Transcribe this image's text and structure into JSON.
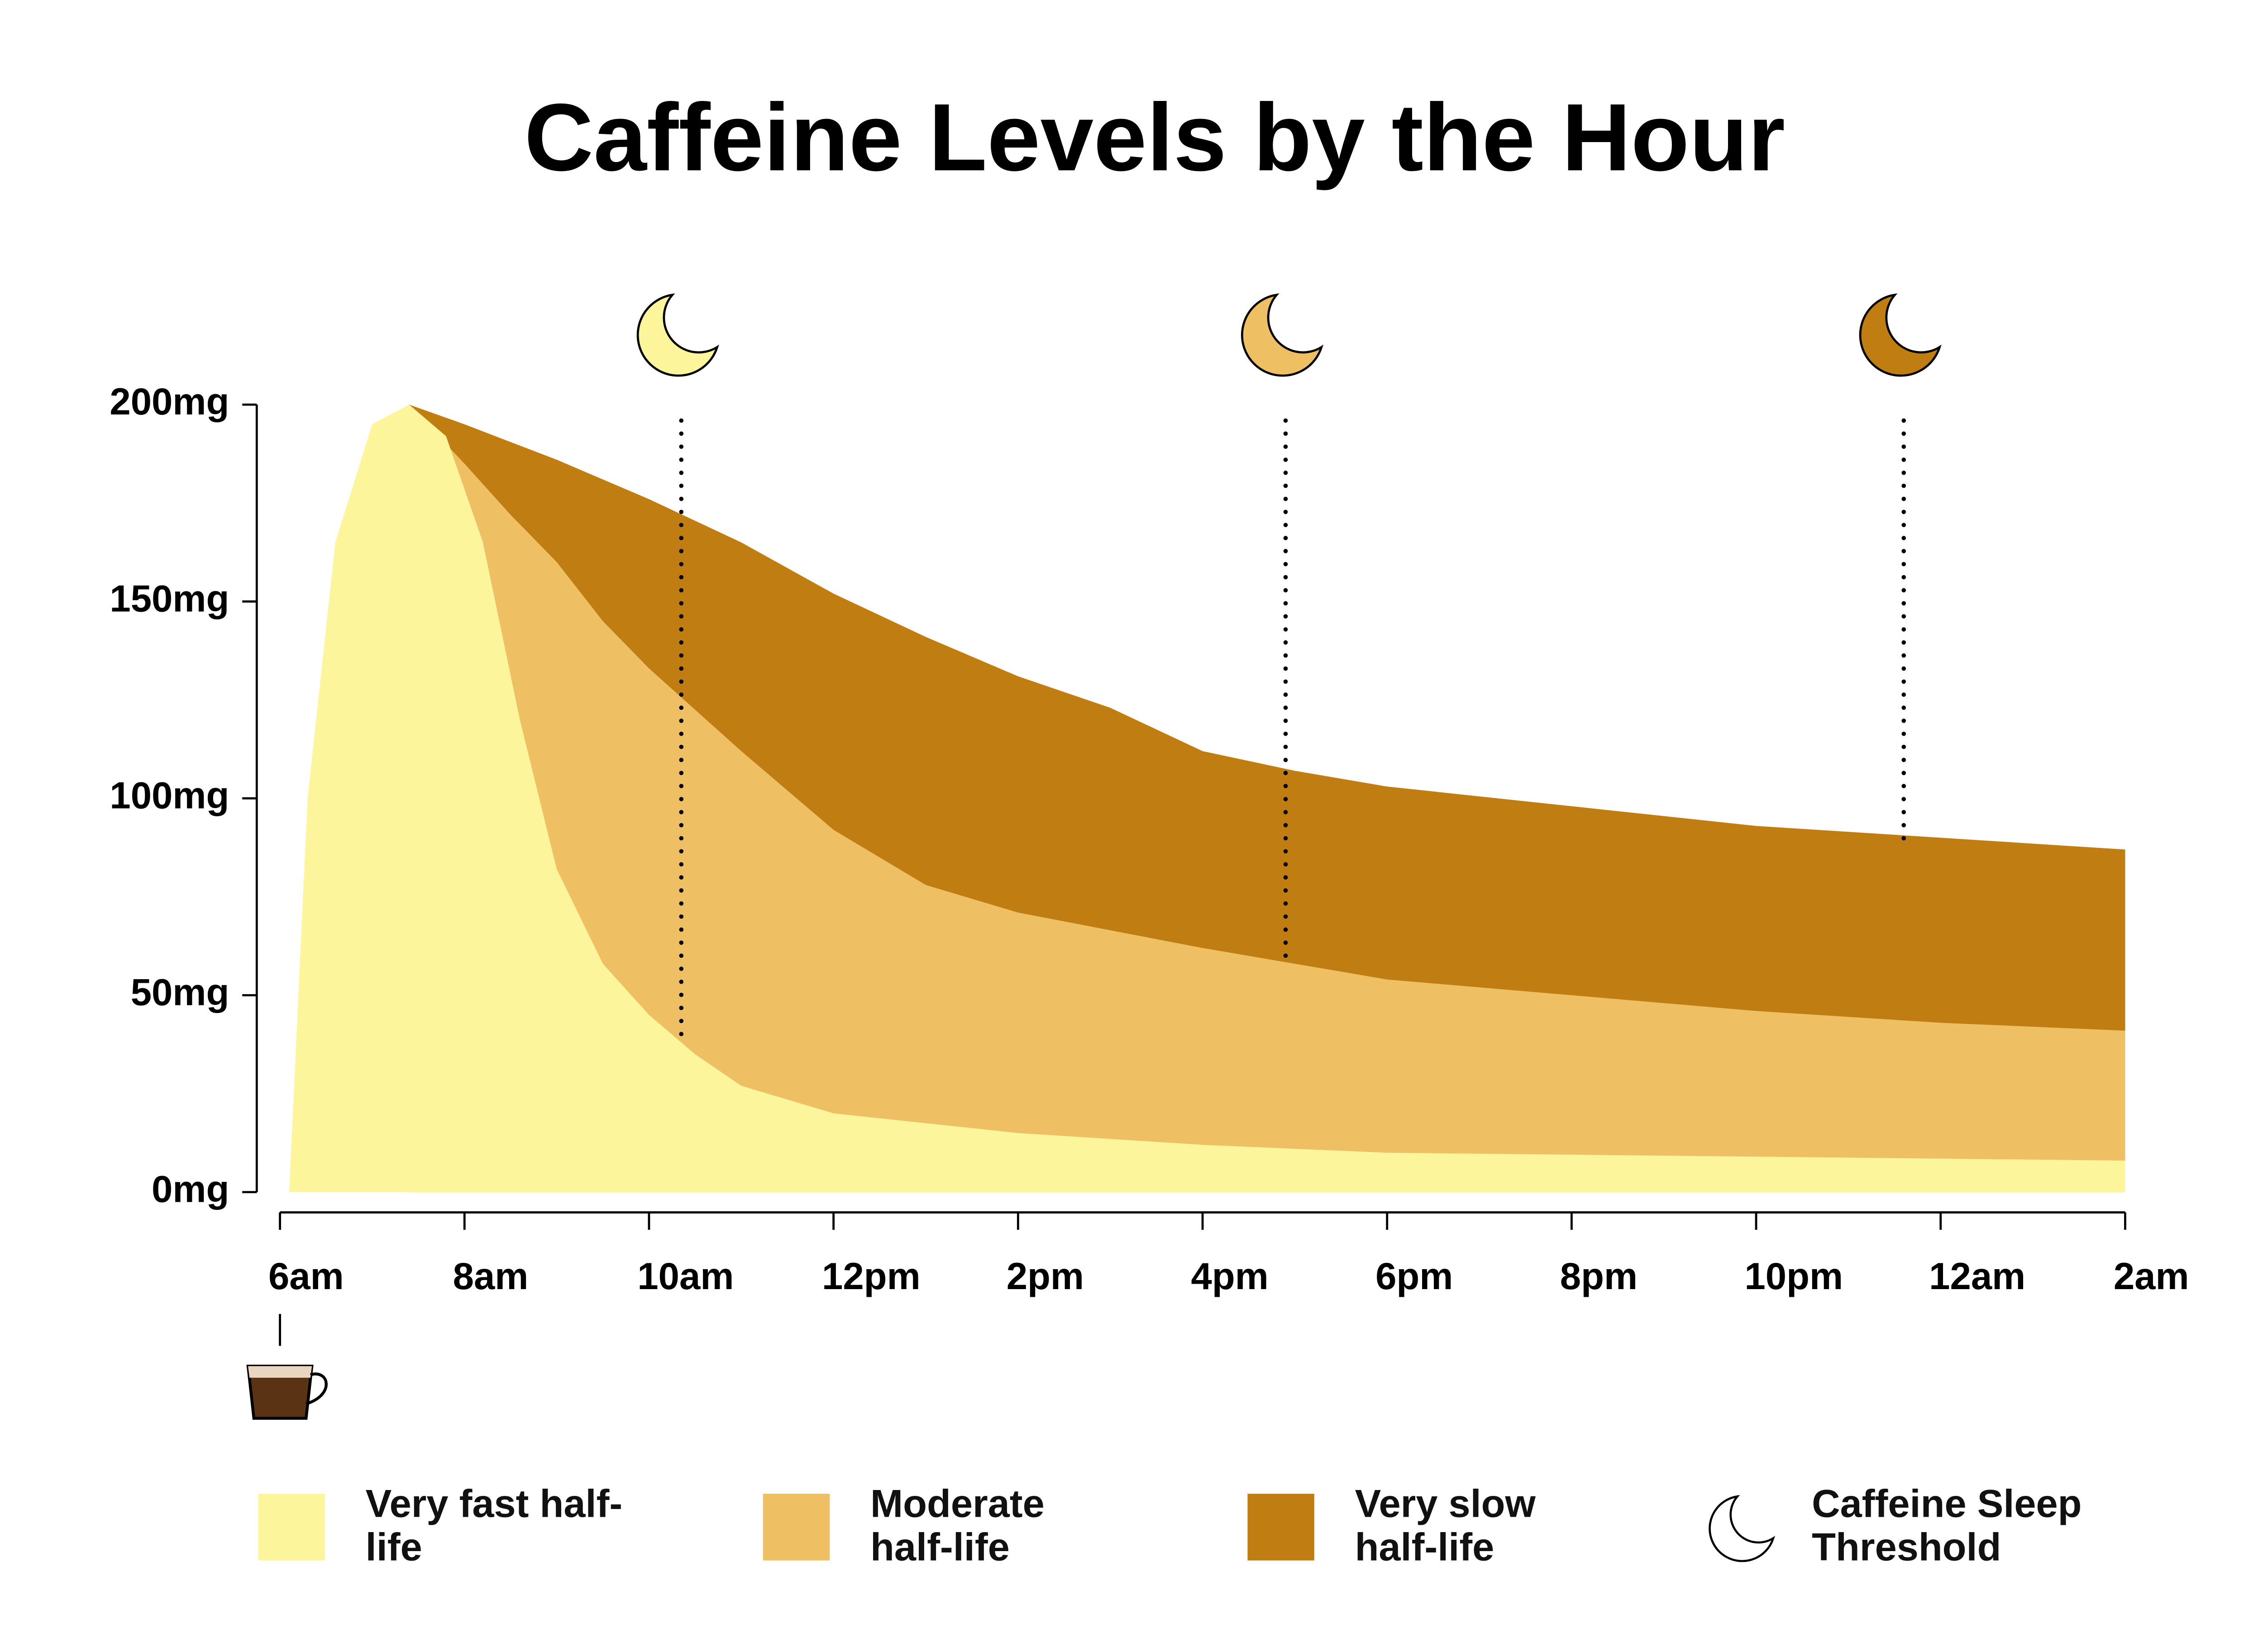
{
  "chart_data": {
    "type": "area",
    "title": "Caffeine Levels by the Hour",
    "xlim": [
      6,
      26
    ],
    "xticks": [
      {
        "value": 6,
        "label": "6am"
      },
      {
        "value": 8,
        "label": "8am"
      },
      {
        "value": 10,
        "label": "10am"
      },
      {
        "value": 12,
        "label": "12pm"
      },
      {
        "value": 14,
        "label": "2pm"
      },
      {
        "value": 16,
        "label": "4pm"
      },
      {
        "value": 18,
        "label": "6pm"
      },
      {
        "value": 20,
        "label": "8pm"
      },
      {
        "value": 22,
        "label": "10pm"
      },
      {
        "value": 24,
        "label": "12am"
      },
      {
        "value": 26,
        "label": "2am"
      }
    ],
    "ylim": [
      0,
      200
    ],
    "yticks": [
      {
        "value": 0,
        "label": "0mg"
      },
      {
        "value": 50,
        "label": "50mg"
      },
      {
        "value": 100,
        "label": "100mg"
      },
      {
        "value": 150,
        "label": "150mg"
      },
      {
        "value": 200,
        "label": "200mg"
      }
    ],
    "series": [
      {
        "name": "Very slow half-life",
        "color": "#c07d12",
        "x": [
          7.4,
          8,
          9,
          10,
          11,
          12,
          13,
          14,
          15,
          16,
          17,
          18,
          20,
          22,
          24,
          26
        ],
        "values": [
          200,
          195,
          186,
          176,
          165,
          152,
          141,
          131,
          123,
          112,
          107,
          103,
          98,
          93,
          90,
          87
        ]
      },
      {
        "name": "Moderate half-life",
        "color": "#efc063",
        "x": [
          7.4,
          8,
          8.5,
          9,
          9.5,
          10,
          11,
          12,
          12.5,
          13,
          14,
          16,
          18,
          20,
          22,
          24,
          26
        ],
        "values": [
          200,
          185,
          172,
          160,
          145,
          133,
          112,
          92,
          85,
          78,
          71,
          62,
          54,
          50,
          46,
          43,
          41
        ]
      },
      {
        "name": "Very fast half-life",
        "color": "#fdf59b",
        "x": [
          6.1,
          6.3,
          6.6,
          7,
          7.4,
          7.8,
          8.2,
          8.6,
          9,
          9.5,
          10,
          10.5,
          11,
          12,
          14,
          16,
          18,
          20,
          22,
          24,
          26
        ],
        "values": [
          0,
          100,
          165,
          195,
          200,
          192,
          165,
          120,
          82,
          58,
          45,
          35,
          27,
          20,
          15,
          12,
          10,
          9.5,
          9,
          8.5,
          8
        ]
      }
    ],
    "thresholds": {
      "name": "Caffeine Sleep Threshold",
      "x": [
        10.35,
        16.9,
        23.6
      ],
      "values": [
        40,
        57,
        88
      ],
      "colors": [
        "#fdf59b",
        "#efc063",
        "#c07d12"
      ]
    }
  }
}
